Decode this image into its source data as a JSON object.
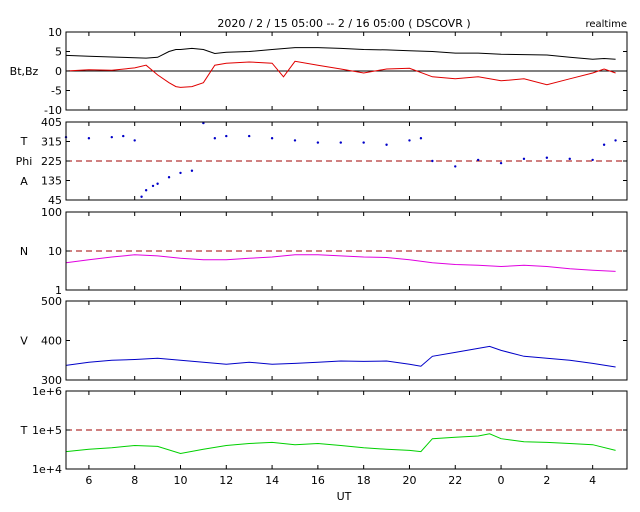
{
  "title": "2020 / 2 / 15   05:00 -- 2 / 16  05:00 ( DSCOVR )",
  "realtime_label": "realtime",
  "x_axis_label": "UT",
  "x_ticks": [
    "6",
    "8",
    "10",
    "12",
    "14",
    "16",
    "18",
    "20",
    "22",
    "0",
    "2",
    "4"
  ],
  "colors": {
    "bt": "#000000",
    "bz": "#e00000",
    "phi": "#0000c8",
    "density": "#e000e0",
    "speed": "#0000c8",
    "temperature": "#00d000",
    "reference_dash": "#a00000"
  },
  "chart_data": [
    {
      "type": "line",
      "panel": "magnetic-field",
      "ylabel": "Bt,Bz",
      "ylim": [
        -10,
        10
      ],
      "yticks": [
        "10",
        "5",
        "0",
        "-5",
        "-10"
      ],
      "reference_line": 0,
      "x_range_hours": [
        5,
        29.5
      ],
      "series": [
        {
          "name": "Bt",
          "x": [
            5,
            6,
            7,
            8,
            8.5,
            9,
            9.5,
            9.8,
            10,
            10.5,
            11,
            11.5,
            12,
            13,
            14,
            15,
            16,
            17,
            18,
            19,
            20,
            21,
            22,
            23,
            24,
            25,
            26,
            27,
            28,
            28.5,
            29
          ],
          "y": [
            4,
            3.8,
            3.6,
            3.4,
            3.3,
            3.5,
            5,
            5.5,
            5.5,
            5.8,
            5.5,
            4.5,
            4.8,
            5,
            5.5,
            6,
            6,
            5.8,
            5.5,
            5.4,
            5.2,
            5,
            4.6,
            4.6,
            4.3,
            4.2,
            4.1,
            3.5,
            3,
            3.2,
            3
          ]
        },
        {
          "name": "Bz",
          "x": [
            5,
            6,
            7,
            8,
            8.5,
            9,
            9.5,
            9.8,
            10,
            10.5,
            11,
            11.5,
            12,
            13,
            14,
            14.5,
            15,
            16,
            17,
            18,
            19,
            20,
            21,
            22,
            23,
            24,
            25,
            26,
            27,
            28,
            28.5,
            29
          ],
          "y": [
            0,
            0.3,
            0.2,
            0.8,
            1.5,
            -1,
            -3,
            -4,
            -4.2,
            -4,
            -3,
            1.5,
            2,
            2.3,
            2,
            -1.5,
            2.5,
            1.5,
            0.5,
            -0.5,
            0.5,
            0.7,
            -1.5,
            -2,
            -1.5,
            -2.5,
            -2,
            -3.5,
            -2,
            -0.5,
            0.5,
            -0.5
          ]
        }
      ]
    },
    {
      "type": "scatter",
      "panel": "phi-angle",
      "ylabel": "T\nPhi\nA",
      "ylim": [
        45,
        405
      ],
      "yticks": [
        "405",
        "315",
        "225",
        "135",
        "45"
      ],
      "reference_line": 225,
      "x_range_hours": [
        5,
        29.5
      ],
      "series": [
        {
          "name": "Phi",
          "x": [
            5,
            6,
            7,
            7.5,
            8,
            8.3,
            8.5,
            8.8,
            9,
            9.5,
            10,
            10.5,
            11,
            11.5,
            12,
            13,
            14,
            15,
            16,
            17,
            18,
            19,
            20,
            20.5,
            21,
            22,
            23,
            24,
            25,
            26,
            27,
            28,
            28.5,
            29
          ],
          "y": [
            335,
            330,
            335,
            340,
            320,
            60,
            90,
            110,
            120,
            150,
            170,
            180,
            400,
            330,
            340,
            340,
            330,
            320,
            310,
            310,
            310,
            300,
            320,
            330,
            225,
            200,
            230,
            215,
            235,
            240,
            235,
            230,
            300,
            320
          ]
        }
      ]
    },
    {
      "type": "line",
      "panel": "density",
      "ylabel": "N",
      "yscale": "log",
      "ylim": [
        1,
        100
      ],
      "yticks": [
        "100",
        "10",
        "1"
      ],
      "reference_line": 10,
      "x_range_hours": [
        5,
        29.5
      ],
      "series": [
        {
          "name": "N",
          "x": [
            5,
            6,
            7,
            8,
            9,
            10,
            11,
            12,
            13,
            14,
            15,
            16,
            17,
            18,
            19,
            20,
            21,
            22,
            23,
            24,
            25,
            26,
            27,
            28,
            29
          ],
          "y": [
            5,
            6,
            7,
            8,
            7.5,
            6.5,
            6,
            6,
            6.5,
            7,
            8,
            8,
            7.5,
            7,
            6.8,
            6,
            5,
            4.5,
            4.3,
            4,
            4.3,
            4,
            3.5,
            3.2,
            3
          ]
        }
      ]
    },
    {
      "type": "line",
      "panel": "speed",
      "ylabel": "V",
      "ylim": [
        300,
        500
      ],
      "yticks": [
        "500",
        "400",
        "300"
      ],
      "x_range_hours": [
        5,
        29.5
      ],
      "series": [
        {
          "name": "V",
          "x": [
            5,
            6,
            7,
            8,
            9,
            10,
            11,
            12,
            13,
            14,
            15,
            16,
            17,
            18,
            19,
            20,
            20.5,
            21,
            22,
            23,
            23.5,
            24,
            25,
            26,
            27,
            28,
            29
          ],
          "y": [
            337,
            345,
            350,
            352,
            355,
            350,
            345,
            340,
            345,
            340,
            342,
            345,
            348,
            347,
            348,
            340,
            335,
            360,
            370,
            380,
            385,
            375,
            360,
            355,
            350,
            342,
            333
          ]
        }
      ]
    },
    {
      "type": "line",
      "panel": "temperature",
      "ylabel": "T",
      "yscale": "log",
      "ylim": [
        10000,
        1000000
      ],
      "yticks": [
        "1e+6",
        "1e+5",
        "1e+4"
      ],
      "reference_line": 100000,
      "x_range_hours": [
        5,
        29.5
      ],
      "series": [
        {
          "name": "T",
          "x": [
            5,
            6,
            7,
            8,
            9,
            10,
            11,
            12,
            13,
            14,
            15,
            16,
            17,
            18,
            19,
            20,
            20.5,
            21,
            22,
            23,
            23.5,
            24,
            25,
            26,
            27,
            28,
            29
          ],
          "y": [
            28000,
            32000,
            35000,
            40000,
            38000,
            25000,
            32000,
            40000,
            45000,
            48000,
            42000,
            45000,
            40000,
            35000,
            32000,
            30000,
            28000,
            60000,
            65000,
            70000,
            80000,
            60000,
            50000,
            48000,
            45000,
            42000,
            30000
          ]
        }
      ]
    }
  ]
}
